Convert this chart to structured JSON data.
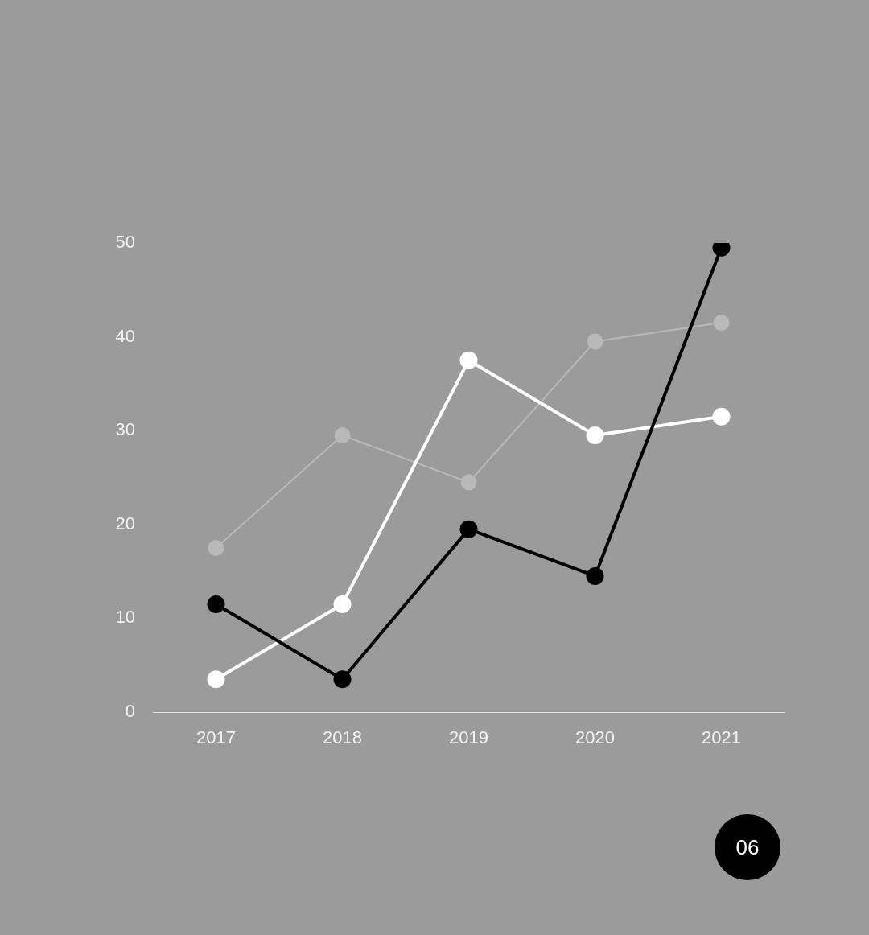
{
  "chart_data": {
    "type": "line",
    "categories": [
      "2017",
      "2018",
      "2019",
      "2020",
      "2021"
    ],
    "series": [
      {
        "color": "#b9b9b9",
        "values": [
          17.5,
          29.5,
          24.5,
          39.5,
          41.5
        ]
      },
      {
        "color": "#ffffff",
        "values": [
          3.5,
          11.5,
          37.5,
          29.5,
          31.5
        ]
      },
      {
        "color": "#000000",
        "values": [
          11.5,
          3.5,
          19.5,
          14.5,
          49.5
        ]
      }
    ],
    "ylim": [
      0,
      50
    ],
    "yticks": [
      0,
      10,
      20,
      30,
      40,
      50
    ],
    "grid": false,
    "legend": false,
    "marker": "circle",
    "line_style": "solid",
    "annotations": [
      "06"
    ]
  }
}
